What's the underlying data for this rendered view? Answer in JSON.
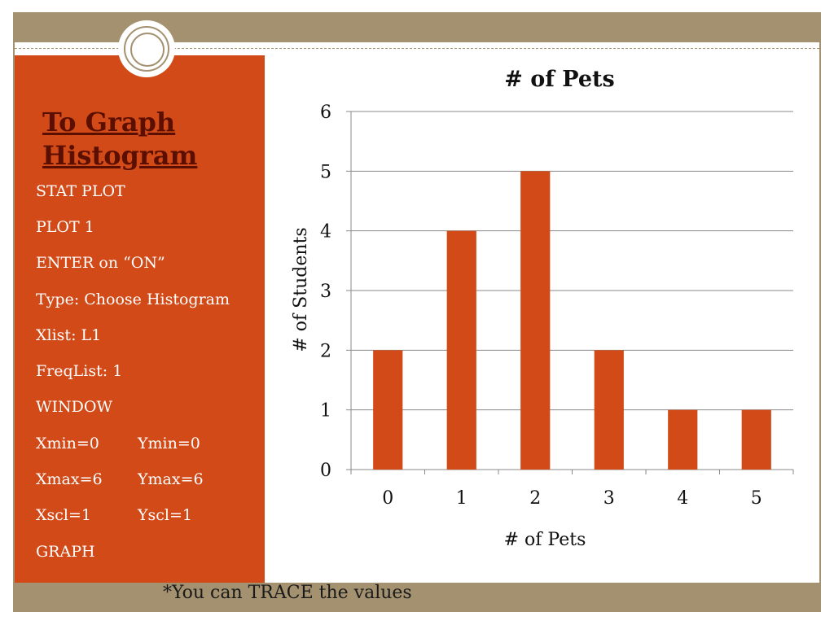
{
  "slide": {
    "title": "To Graph Histogram",
    "steps": [
      "STAT PLOT",
      "PLOT 1",
      "ENTER on “ON”",
      "Type:  Choose Histogram",
      "Xlist:  L1",
      "FreqList:  1",
      "WINDOW"
    ],
    "window_settings": [
      {
        "x": "Xmin=0",
        "y": "Ymin=0"
      },
      {
        "x": "Xmax=6",
        "y": "Ymax=6"
      },
      {
        "x": "Xscl=1",
        "y": "Yscl=1"
      }
    ],
    "final_step": "GRAPH",
    "footer_note": "*You can TRACE the values"
  },
  "colors": {
    "panel": "#d24a18",
    "bar": "#d24a18",
    "frame": "#a39170",
    "title_text": "#5a0f00"
  },
  "chart_data": {
    "type": "bar",
    "title": "# of Pets",
    "xlabel": "# of Pets",
    "ylabel": "# of Students",
    "categories": [
      "0",
      "1",
      "2",
      "3",
      "4",
      "5"
    ],
    "values": [
      2,
      4,
      5,
      2,
      1,
      1
    ],
    "ylim": [
      0,
      6
    ],
    "yticks": [
      "0",
      "1",
      "2",
      "3",
      "4",
      "5",
      "6"
    ],
    "grid": true,
    "legend": "none"
  }
}
